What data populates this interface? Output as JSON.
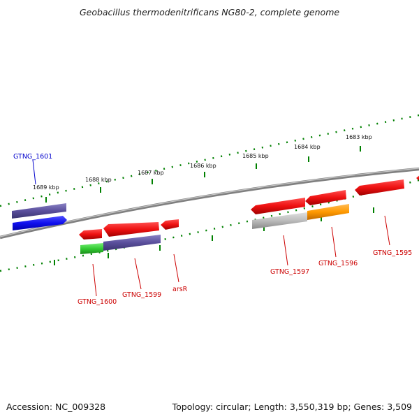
{
  "title": "Geobacillus thermodenitrificans NG80-2, complete genome",
  "footer": {
    "accession": "Accession: NC_009328",
    "topology": "Topology: circular; Length: 3,550,319 bp; Genes: 3,509"
  },
  "scale_labels": [
    "1689 kbp",
    "1688 kbp",
    "1687 kbp",
    "1686 kbp",
    "1685 kbp",
    "1684 kbp",
    "1683 kbp"
  ],
  "gene_labels": [
    "GTNG_1601",
    "GTNG_1600",
    "GTNG_1599",
    "arsR",
    "GTNG_1597",
    "GTNG_1596",
    "GTNG_1595"
  ],
  "colors": {
    "forward_gene": "#ee1111",
    "label_red": "#cc0000",
    "label_blue": "#0000cc",
    "backbone": "#808080",
    "tick_green": "#008000",
    "cog_purple": "#5a4f9c",
    "cog_blue": "#1010ee",
    "cog_green": "#33cc33",
    "cog_gray": "#bbbbbb",
    "cog_orange": "#ff9900"
  }
}
